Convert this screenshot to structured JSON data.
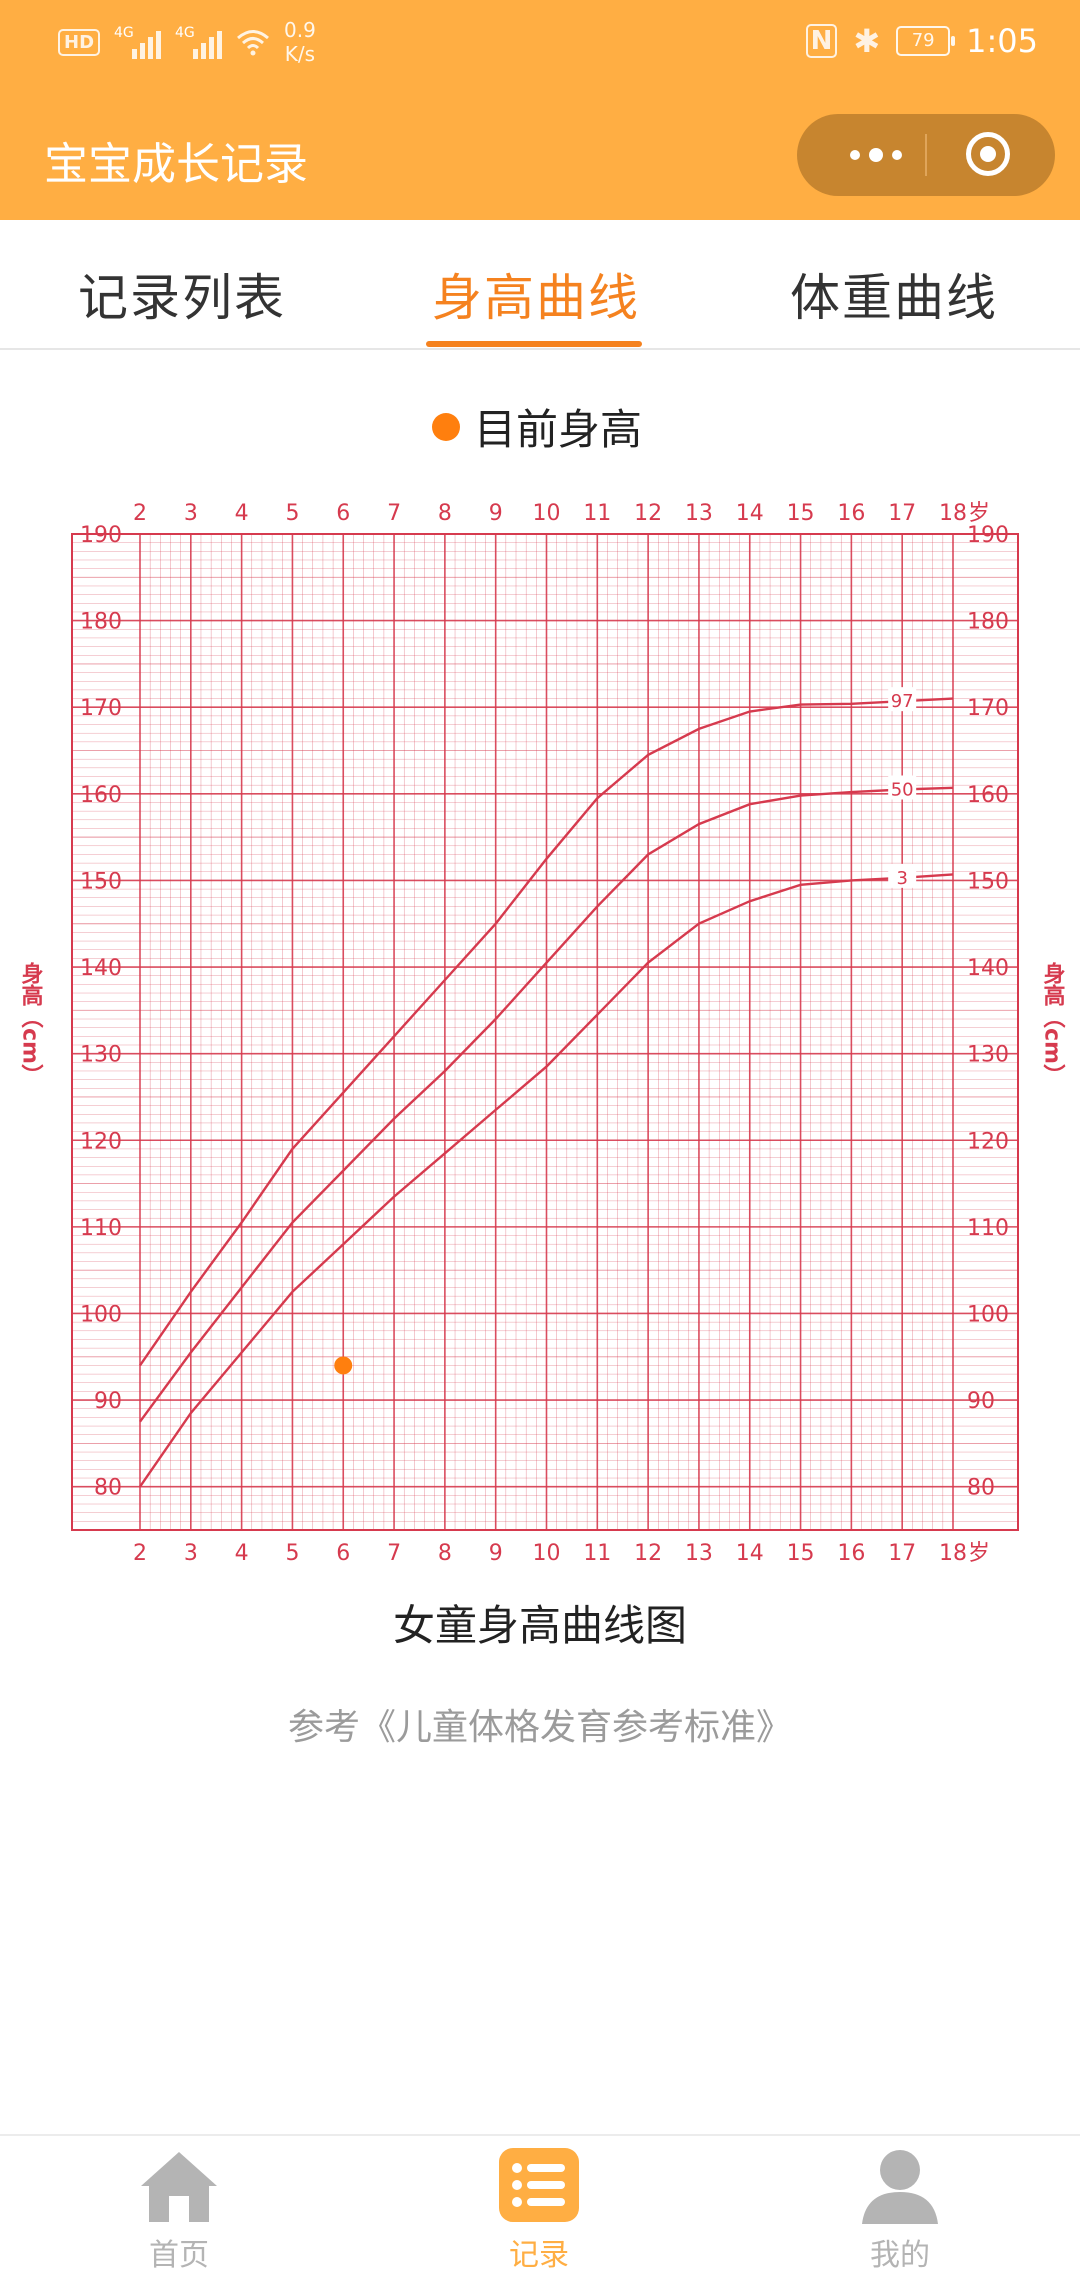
{
  "status_bar": {
    "hd": "HD",
    "signal1": "4G",
    "signal2": "4G",
    "speed_value": "0.9",
    "speed_unit": "K/s",
    "nfc": "N",
    "bluetooth": "✱",
    "battery": "79",
    "time": "1:05"
  },
  "app": {
    "title": "宝宝成长记录"
  },
  "tabs": [
    {
      "label": "记录列表"
    },
    {
      "label": "身高曲线"
    },
    {
      "label": "体重曲线"
    }
  ],
  "active_tab": 1,
  "legend": {
    "label": "目前身高",
    "color": "#FF7F0E"
  },
  "chart_data": {
    "type": "line",
    "title": "女童身高曲线图",
    "ylabel": "身高（cm）",
    "x_unit": "岁",
    "x_ticks": [
      "2",
      "3",
      "4",
      "5",
      "6",
      "7",
      "8",
      "9",
      "10",
      "11",
      "12",
      "13",
      "14",
      "15",
      "16",
      "17",
      "18"
    ],
    "y_ticks": [
      "80",
      "90",
      "100",
      "110",
      "120",
      "130",
      "140",
      "150",
      "160",
      "170",
      "180",
      "190"
    ],
    "xlim": [
      2,
      18
    ],
    "ylim": [
      75,
      190
    ],
    "grid": true,
    "grid_color": "#D63A4E",
    "series": [
      {
        "name": "97",
        "x": [
          2,
          3,
          4,
          5,
          6,
          7,
          8,
          9,
          10,
          11,
          12,
          13,
          14,
          15,
          16,
          17,
          18
        ],
        "values": [
          94,
          102.5,
          110.5,
          119,
          125.5,
          132,
          138.5,
          145,
          152.5,
          159.5,
          164.5,
          167.5,
          169.5,
          170.3,
          170.4,
          170.7,
          171
        ]
      },
      {
        "name": "50",
        "x": [
          2,
          3,
          4,
          5,
          6,
          7,
          8,
          9,
          10,
          11,
          12,
          13,
          14,
          15,
          16,
          17,
          18
        ],
        "values": [
          87.5,
          95.5,
          103,
          110.5,
          116.5,
          122.5,
          128,
          134,
          140.5,
          147,
          153,
          156.5,
          158.8,
          159.8,
          160.2,
          160.5,
          160.7
        ]
      },
      {
        "name": "3",
        "x": [
          2,
          3,
          4,
          5,
          6,
          7,
          8,
          9,
          10,
          11,
          12,
          13,
          14,
          15,
          16,
          17,
          18
        ],
        "values": [
          80,
          88.5,
          95.5,
          102.5,
          108,
          113.5,
          118.5,
          123.5,
          128.5,
          134.5,
          140.5,
          145,
          147.6,
          149.5,
          150,
          150.3,
          150.7
        ]
      }
    ],
    "points": [
      {
        "name": "目前身高",
        "x": 6,
        "y": 94,
        "color": "#FF7F0E"
      }
    ]
  },
  "reference": "参考《儿童体格发育参考标准》",
  "bottom_nav": [
    {
      "label": "首页"
    },
    {
      "label": "记录"
    },
    {
      "label": "我的"
    }
  ],
  "colors": {
    "accent": "#FFAE43",
    "tab_active": "#F5821F",
    "inactive": "#B4B4B4"
  }
}
